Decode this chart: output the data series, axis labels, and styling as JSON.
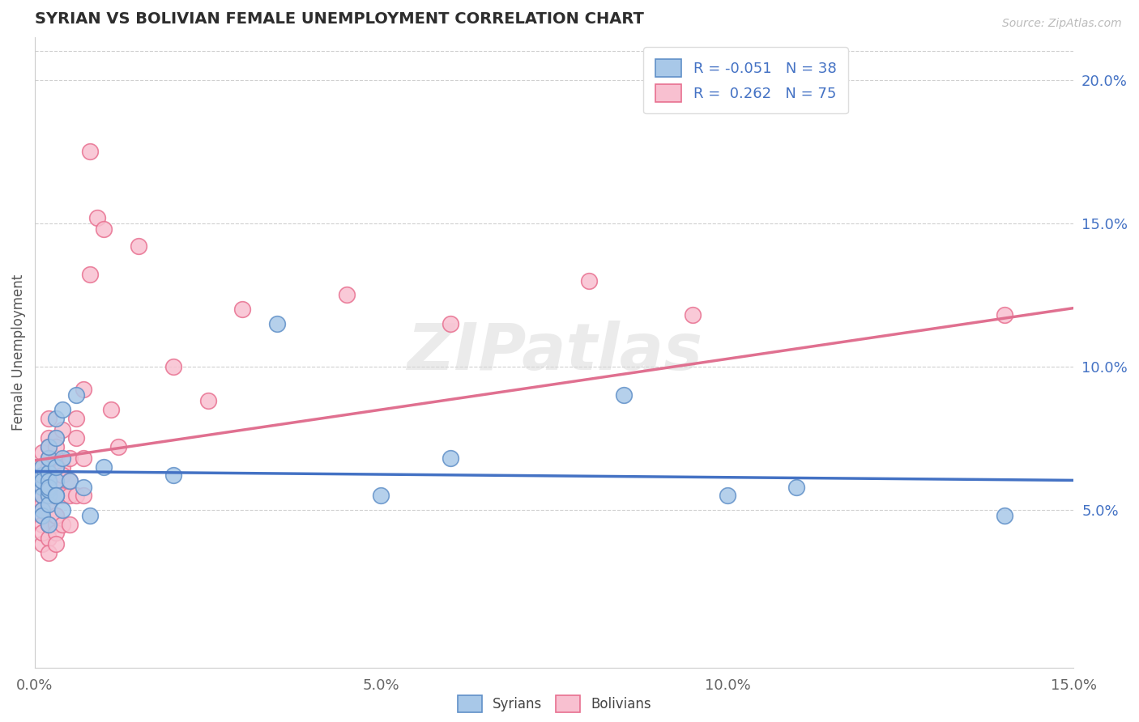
{
  "title": "SYRIAN VS BOLIVIAN FEMALE UNEMPLOYMENT CORRELATION CHART",
  "source_text": "Source: ZipAtlas.com",
  "ylabel": "Female Unemployment",
  "xlim": [
    0.0,
    0.15
  ],
  "ylim": [
    -0.005,
    0.215
  ],
  "xticks": [
    0.0,
    0.05,
    0.1,
    0.15
  ],
  "xtick_labels": [
    "0.0%",
    "5.0%",
    "10.0%",
    "15.0%"
  ],
  "yticks_right": [
    0.05,
    0.1,
    0.15,
    0.2
  ],
  "ytick_labels_right": [
    "5.0%",
    "10.0%",
    "15.0%",
    "20.0%"
  ],
  "watermark": "ZIPatlas",
  "blue_R": -0.051,
  "blue_N": 38,
  "pink_R": 0.262,
  "pink_N": 75,
  "syrians_label": "Syrians",
  "bolivians_label": "Bolivians",
  "background_color": "#ffffff",
  "grid_color": "#d0d0d0",
  "title_color": "#2d2d2d",
  "blue_scatter_color": "#a8c8e8",
  "pink_scatter_color": "#f8c0d0",
  "blue_edge_color": "#6090c8",
  "pink_edge_color": "#e87090",
  "blue_line_color": "#4472c4",
  "pink_line_color": "#e07090",
  "syrians_x": [
    0.001,
    0.001,
    0.001,
    0.001,
    0.001,
    0.001,
    0.001,
    0.002,
    0.002,
    0.002,
    0.002,
    0.002,
    0.002,
    0.002,
    0.002,
    0.002,
    0.003,
    0.003,
    0.003,
    0.003,
    0.003,
    0.003,
    0.004,
    0.004,
    0.004,
    0.005,
    0.006,
    0.007,
    0.008,
    0.01,
    0.02,
    0.035,
    0.05,
    0.06,
    0.085,
    0.1,
    0.11,
    0.14
  ],
  "syrians_y": [
    0.058,
    0.062,
    0.055,
    0.065,
    0.05,
    0.048,
    0.06,
    0.063,
    0.055,
    0.06,
    0.052,
    0.068,
    0.057,
    0.045,
    0.072,
    0.058,
    0.06,
    0.055,
    0.075,
    0.065,
    0.082,
    0.055,
    0.085,
    0.068,
    0.05,
    0.06,
    0.09,
    0.058,
    0.048,
    0.065,
    0.062,
    0.115,
    0.055,
    0.068,
    0.09,
    0.055,
    0.058,
    0.048
  ],
  "bolivians_x": [
    0.001,
    0.001,
    0.001,
    0.001,
    0.001,
    0.001,
    0.001,
    0.001,
    0.001,
    0.001,
    0.001,
    0.001,
    0.001,
    0.002,
    0.002,
    0.002,
    0.002,
    0.002,
    0.002,
    0.002,
    0.002,
    0.002,
    0.002,
    0.002,
    0.002,
    0.002,
    0.002,
    0.002,
    0.002,
    0.002,
    0.003,
    0.003,
    0.003,
    0.003,
    0.003,
    0.003,
    0.003,
    0.003,
    0.003,
    0.003,
    0.003,
    0.003,
    0.003,
    0.003,
    0.003,
    0.004,
    0.004,
    0.004,
    0.004,
    0.004,
    0.005,
    0.005,
    0.005,
    0.005,
    0.006,
    0.006,
    0.006,
    0.007,
    0.007,
    0.007,
    0.008,
    0.008,
    0.009,
    0.01,
    0.011,
    0.012,
    0.015,
    0.02,
    0.025,
    0.03,
    0.045,
    0.06,
    0.08,
    0.095,
    0.14
  ],
  "bolivians_y": [
    0.06,
    0.048,
    0.055,
    0.062,
    0.052,
    0.045,
    0.07,
    0.058,
    0.038,
    0.065,
    0.042,
    0.055,
    0.05,
    0.06,
    0.068,
    0.055,
    0.045,
    0.075,
    0.048,
    0.062,
    0.04,
    0.072,
    0.065,
    0.055,
    0.082,
    0.035,
    0.05,
    0.058,
    0.045,
    0.065,
    0.06,
    0.075,
    0.055,
    0.065,
    0.045,
    0.058,
    0.048,
    0.068,
    0.055,
    0.042,
    0.072,
    0.06,
    0.038,
    0.055,
    0.048,
    0.065,
    0.055,
    0.078,
    0.062,
    0.045,
    0.068,
    0.055,
    0.045,
    0.06,
    0.075,
    0.055,
    0.082,
    0.068,
    0.055,
    0.092,
    0.175,
    0.132,
    0.152,
    0.148,
    0.085,
    0.072,
    0.142,
    0.1,
    0.088,
    0.12,
    0.125,
    0.115,
    0.13,
    0.118,
    0.118
  ]
}
